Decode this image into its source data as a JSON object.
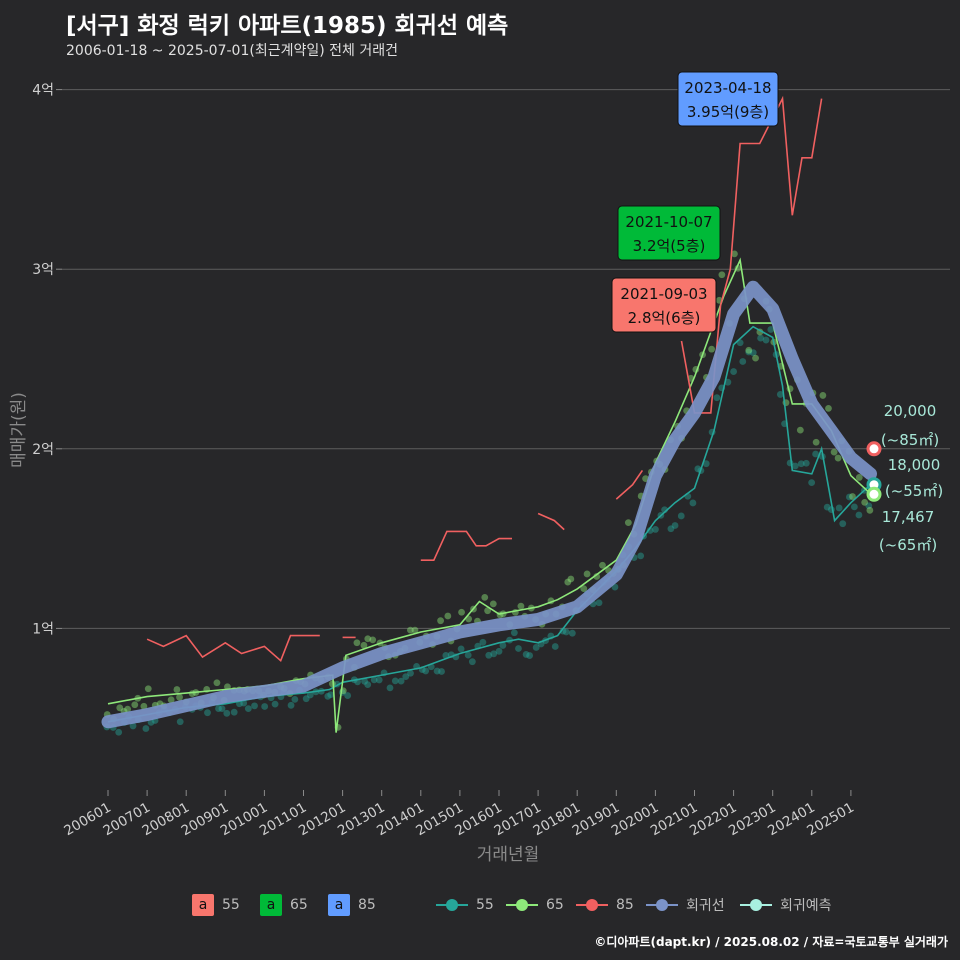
{
  "title": "[서구] 화정 럭키 아파트(1985) 회귀선 예측",
  "subtitle": "2006-01-18 ~ 2025-07-01(최근계약일) 전체 거래건",
  "caption": "©디아파트(dapt.kr) / 2025.08.02 / 자료=국토교통부 실거래가",
  "colors": {
    "s55": "#26a69a",
    "s65": "#8ee87a",
    "s85": "#f06060",
    "regression": "#7b93c8",
    "forecast": "#a8f0e0",
    "box55": "#f8766d",
    "box65": "#00ba38",
    "box85": "#619cff"
  },
  "chart_data": {
    "type": "line",
    "xlabel": "거래년월",
    "ylabel": "매매가(원)",
    "x_range": [
      "2006-01",
      "2025-07"
    ],
    "ylim": [
      0,
      4.0
    ],
    "y_unit": "억",
    "y_ticks": [
      {
        "value": 1,
        "label": "1억"
      },
      {
        "value": 2,
        "label": "2억"
      },
      {
        "value": 3,
        "label": "3억"
      },
      {
        "value": 4,
        "label": "4억"
      }
    ],
    "x_ticks": [
      "200601",
      "200701",
      "200801",
      "200901",
      "201001",
      "201101",
      "201201",
      "201301",
      "201401",
      "201501",
      "201601",
      "201701",
      "201801",
      "201901",
      "202001",
      "202101",
      "202201",
      "202301",
      "202401",
      "202501"
    ],
    "grid": "horizontal",
    "series": [
      {
        "name": "55",
        "color_key": "s55",
        "points": [
          [
            "2006-01",
            0.48
          ],
          [
            "2007-01",
            0.52
          ],
          [
            "2008-01",
            0.56
          ],
          [
            "2009-01",
            0.58
          ],
          [
            "2010-01",
            0.62
          ],
          [
            "2011-01",
            0.64
          ],
          [
            "2011-09",
            0.66
          ],
          [
            "2012-01",
            0.7
          ],
          [
            "2013-01",
            0.74
          ],
          [
            "2014-01",
            0.78
          ],
          [
            "2015-01",
            0.86
          ],
          [
            "2016-01",
            0.92
          ],
          [
            "2016-07",
            0.94
          ],
          [
            "2017-01",
            0.92
          ],
          [
            "2017-07",
            0.96
          ],
          [
            "2018-01",
            1.1
          ],
          [
            "2019-01",
            1.32
          ],
          [
            "2019-07",
            1.45
          ],
          [
            "2020-01",
            1.6
          ],
          [
            "2020-07",
            1.7
          ],
          [
            "2021-01",
            1.78
          ],
          [
            "2021-07",
            2.1
          ],
          [
            "2022-01",
            2.58
          ],
          [
            "2022-07",
            2.68
          ],
          [
            "2023-01",
            2.62
          ],
          [
            "2023-04",
            2.35
          ],
          [
            "2023-07",
            1.88
          ],
          [
            "2024-01",
            1.86
          ],
          [
            "2024-04",
            2.0
          ],
          [
            "2024-08",
            1.6
          ],
          [
            "2025-01",
            1.7
          ],
          [
            "2025-07",
            1.8
          ]
        ]
      },
      {
        "name": "65",
        "color_key": "s65",
        "points": [
          [
            "2006-01",
            0.58
          ],
          [
            "2007-01",
            0.62
          ],
          [
            "2008-01",
            0.64
          ],
          [
            "2009-01",
            0.66
          ],
          [
            "2010-01",
            0.68
          ],
          [
            "2011-01",
            0.72
          ],
          [
            "2011-10",
            0.74
          ],
          [
            "2011-11",
            0.42
          ],
          [
            "2012-02",
            0.85
          ],
          [
            "2013-01",
            0.92
          ],
          [
            "2014-01",
            0.98
          ],
          [
            "2015-01",
            1.02
          ],
          [
            "2015-07",
            1.15
          ],
          [
            "2016-01",
            1.08
          ],
          [
            "2016-07",
            1.1
          ],
          [
            "2017-01",
            1.12
          ],
          [
            "2017-07",
            1.16
          ],
          [
            "2018-01",
            1.22
          ],
          [
            "2019-01",
            1.38
          ],
          [
            "2019-07",
            1.58
          ],
          [
            "2020-01",
            1.92
          ],
          [
            "2020-07",
            2.15
          ],
          [
            "2021-01",
            2.4
          ],
          [
            "2021-10",
            2.85
          ],
          [
            "2022-03",
            3.05
          ],
          [
            "2022-06",
            2.7
          ],
          [
            "2023-01",
            2.7
          ],
          [
            "2023-07",
            2.25
          ],
          [
            "2024-01",
            2.25
          ],
          [
            "2024-07",
            2.1
          ],
          [
            "2025-01",
            1.85
          ],
          [
            "2025-07",
            1.75
          ]
        ]
      },
      {
        "name": "85",
        "color_key": "s85",
        "segments": [
          [
            [
              "2007-01",
              0.94
            ],
            [
              "2007-06",
              0.9
            ],
            [
              "2008-01",
              0.96
            ],
            [
              "2008-06",
              0.84
            ],
            [
              "2009-01",
              0.92
            ],
            [
              "2009-06",
              0.86
            ],
            [
              "2010-01",
              0.9
            ],
            [
              "2010-06",
              0.82
            ],
            [
              "2010-09",
              0.96
            ],
            [
              "2011-06",
              0.96
            ]
          ],
          [
            [
              "2012-01",
              0.95
            ],
            [
              "2012-05",
              0.95
            ]
          ],
          [
            [
              "2014-01",
              1.38
            ],
            [
              "2014-05",
              1.38
            ],
            [
              "2014-09",
              1.54
            ],
            [
              "2015-03",
              1.54
            ],
            [
              "2015-06",
              1.46
            ],
            [
              "2015-09",
              1.46
            ],
            [
              "2016-01",
              1.5
            ],
            [
              "2016-05",
              1.5
            ]
          ],
          [
            [
              "2017-01",
              1.64
            ],
            [
              "2017-06",
              1.6
            ],
            [
              "2017-09",
              1.55
            ]
          ],
          [
            [
              "2019-01",
              1.72
            ],
            [
              "2019-06",
              1.8
            ],
            [
              "2019-09",
              1.88
            ]
          ],
          [
            [
              "2020-09",
              2.6
            ],
            [
              "2021-01",
              2.2
            ],
            [
              "2021-06",
              2.2
            ],
            [
              "2021-09",
              2.8
            ],
            [
              "2021-12",
              3.0
            ],
            [
              "2022-03",
              3.7
            ],
            [
              "2022-09",
              3.7
            ],
            [
              "2023-04",
              3.95
            ],
            [
              "2023-07",
              3.3
            ],
            [
              "2023-10",
              3.62
            ],
            [
              "2024-01",
              3.62
            ],
            [
              "2024-04",
              3.95
            ]
          ]
        ]
      },
      {
        "name": "회귀선",
        "color_key": "regression",
        "points": [
          [
            "2006-01",
            0.48
          ],
          [
            "2007-01",
            0.52
          ],
          [
            "2008-01",
            0.57
          ],
          [
            "2009-01",
            0.62
          ],
          [
            "2010-01",
            0.65
          ],
          [
            "2011-01",
            0.68
          ],
          [
            "2012-01",
            0.78
          ],
          [
            "2013-01",
            0.86
          ],
          [
            "2014-01",
            0.92
          ],
          [
            "2015-01",
            0.98
          ],
          [
            "2016-01",
            1.02
          ],
          [
            "2017-01",
            1.05
          ],
          [
            "2018-01",
            1.12
          ],
          [
            "2019-01",
            1.3
          ],
          [
            "2019-07",
            1.5
          ],
          [
            "2020-01",
            1.85
          ],
          [
            "2020-07",
            2.05
          ],
          [
            "2021-01",
            2.2
          ],
          [
            "2021-07",
            2.4
          ],
          [
            "2022-01",
            2.75
          ],
          [
            "2022-07",
            2.9
          ],
          [
            "2023-01",
            2.78
          ],
          [
            "2023-07",
            2.5
          ],
          [
            "2024-01",
            2.25
          ],
          [
            "2024-07",
            2.1
          ],
          [
            "2025-01",
            1.95
          ],
          [
            "2025-07",
            1.86
          ]
        ]
      }
    ],
    "highlights": [
      {
        "date": "2023-04-18",
        "price_label": "3.95억(9층)",
        "value": 3.95,
        "box_color_key": "box85"
      },
      {
        "date": "2021-10-07",
        "price_label": "3.2억(5층)",
        "value": 3.2,
        "box_color_key": "box65"
      },
      {
        "date": "2021-09-03",
        "price_label": "2.8억(6층)",
        "value": 2.8,
        "box_color_key": "box55"
      }
    ],
    "forecasts": [
      {
        "value": "20,000",
        "area": "(~85㎡)",
        "y": 2.0,
        "color_key": "s85"
      },
      {
        "value": "18,000",
        "area": "(~55㎡)",
        "y": 1.8,
        "color_key": "s55"
      },
      {
        "value": "17,467",
        "area": "(~65㎡)",
        "y": 1.7467,
        "color_key": "s65"
      }
    ]
  },
  "legend": {
    "boxes": [
      {
        "glyph": "a",
        "label": "55",
        "color_key": "box55"
      },
      {
        "glyph": "a",
        "label": "65",
        "color_key": "box65"
      },
      {
        "glyph": "a",
        "label": "85",
        "color_key": "box85"
      }
    ],
    "lines": [
      {
        "label": "55",
        "color_key": "s55"
      },
      {
        "label": "65",
        "color_key": "s65"
      },
      {
        "label": "85",
        "color_key": "s85"
      },
      {
        "label": "회귀선",
        "color_key": "regression"
      },
      {
        "label": "회귀예측",
        "color_key": "forecast"
      }
    ]
  }
}
